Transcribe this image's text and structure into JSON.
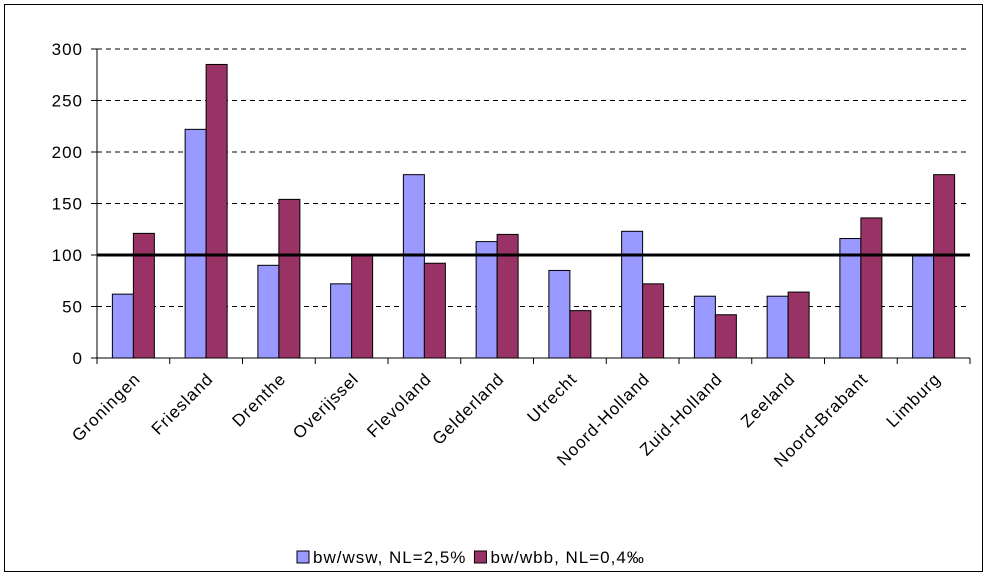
{
  "chart_data": {
    "type": "bar",
    "categories": [
      "Groningen",
      "Friesland",
      "Drenthe",
      "Overijssel",
      "Flevoland",
      "Gelderland",
      "Utrecht",
      "Noord-Holland",
      "Zuid-Holland",
      "Zeeland",
      "Noord-Brabant",
      "Limburg"
    ],
    "series": [
      {
        "name": "bw/wsw, NL=2,5%",
        "color": "#9999ff",
        "values": [
          62,
          222,
          90,
          72,
          178,
          113,
          85,
          123,
          60,
          60,
          116,
          100
        ]
      },
      {
        "name": "bw/wbb, NL=0,4‰",
        "color": "#993366",
        "values": [
          121,
          285,
          154,
          100,
          92,
          120,
          46,
          72,
          42,
          64,
          136,
          178
        ]
      }
    ],
    "reference_line": 100,
    "ylim": [
      0,
      300
    ],
    "yticks": [
      "0",
      "50",
      "100",
      "150",
      "200",
      "250",
      "300"
    ],
    "title": "",
    "xlabel": "",
    "ylabel": "",
    "grid": "horizontal dashed",
    "legend": "bottom"
  }
}
